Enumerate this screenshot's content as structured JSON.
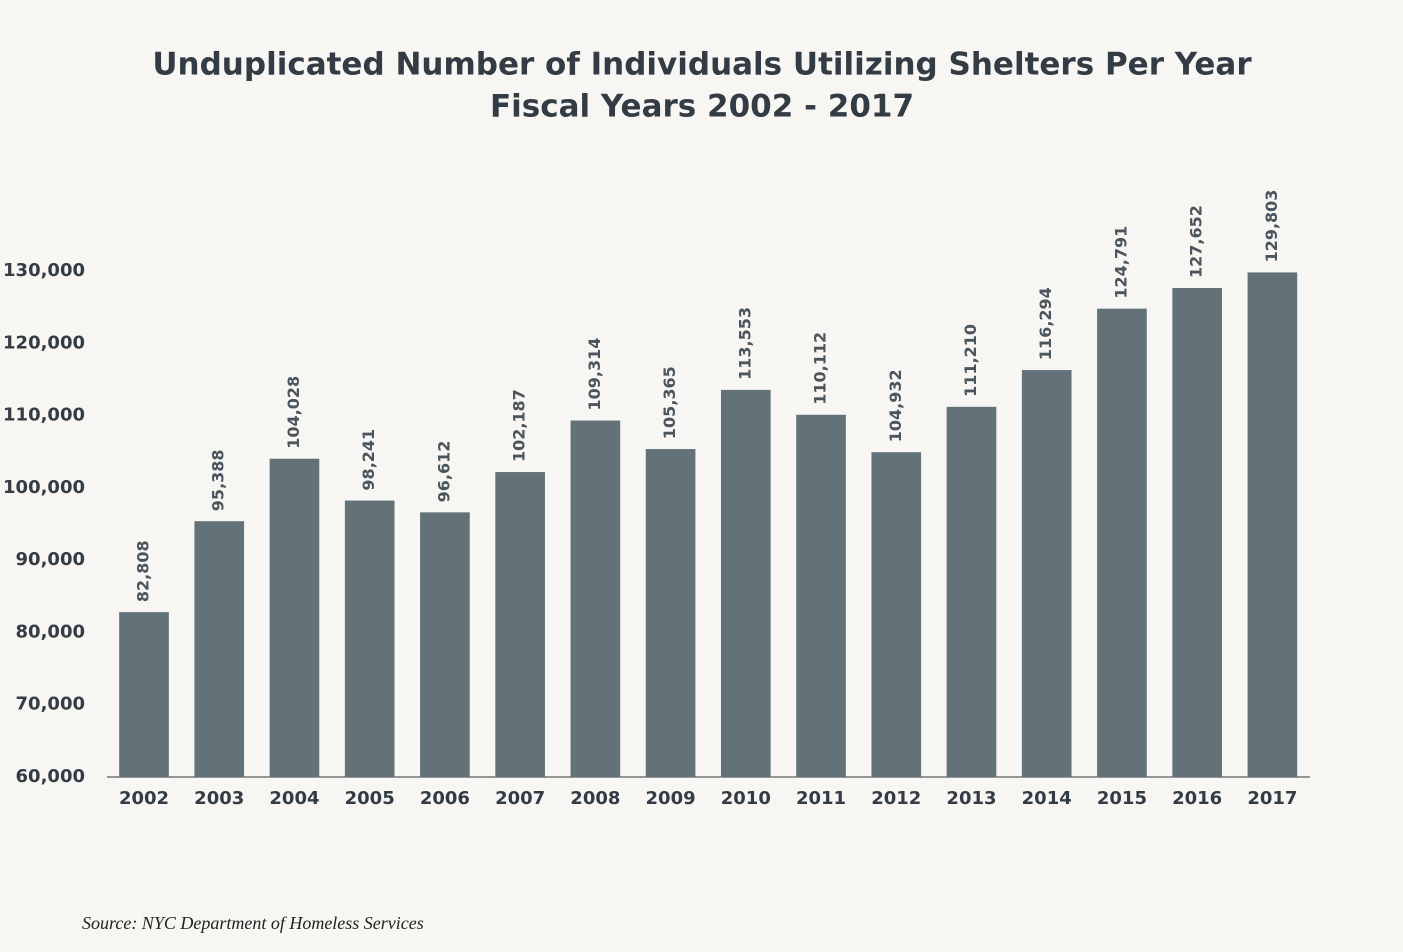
{
  "chart_data": {
    "type": "bar",
    "title": "Unduplicated Number of Individuals Utilizing Shelters Per Year",
    "subtitle": "Fiscal Years 2002 - 2017",
    "categories": [
      "2002",
      "2003",
      "2004",
      "2005",
      "2006",
      "2007",
      "2008",
      "2009",
      "2010",
      "2011",
      "2012",
      "2013",
      "2014",
      "2015",
      "2016",
      "2017"
    ],
    "values": [
      82808,
      95388,
      104028,
      98241,
      96612,
      102187,
      109314,
      105365,
      113553,
      110112,
      104932,
      111210,
      116294,
      124791,
      127652,
      129803
    ],
    "value_labels": [
      "82,808",
      "95,388",
      "104,028",
      "98,241",
      "96,612",
      "102,187",
      "109,314",
      "105,365",
      "113,553",
      "110,112",
      "104,932",
      "111,210",
      "116,294",
      "124,791",
      "127,652",
      "129,803"
    ],
    "color": "#637178",
    "ylim": [
      60000,
      130000
    ],
    "yticks": [
      {
        "value": 60000,
        "label": "60,000"
      },
      {
        "value": 70000,
        "label": "70,000"
      },
      {
        "value": 80000,
        "label": "80,000"
      },
      {
        "value": 90000,
        "label": "90,000"
      },
      {
        "value": 100000,
        "label": "100,000"
      },
      {
        "value": 110000,
        "label": "110,000"
      },
      {
        "value": 120000,
        "label": "120,000"
      },
      {
        "value": 130000,
        "label": "130,000"
      }
    ],
    "grid": false,
    "source": "Source:  NYC Department of Homeless Services"
  }
}
